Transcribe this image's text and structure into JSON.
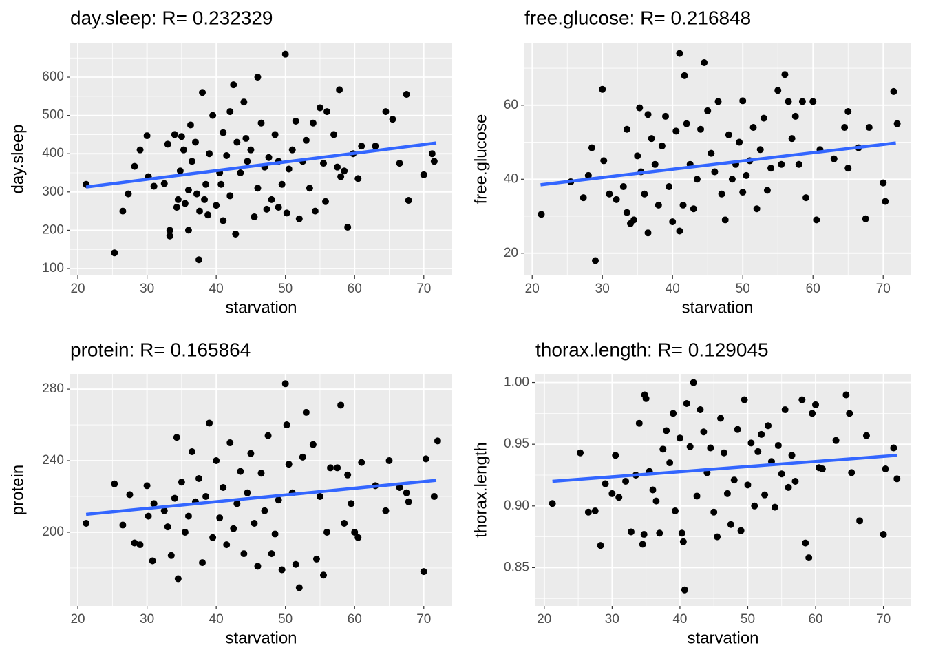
{
  "chart_data": [
    {
      "type": "scatter",
      "title": "day.sleep: R= 0.232329",
      "x_label": "starvation",
      "y_label": "day.sleep",
      "xlim": [
        18.9,
        74.1
      ],
      "xticks": [
        20,
        30,
        40,
        50,
        60,
        70
      ],
      "ylim": [
        82,
        690
      ],
      "yticks": [
        100,
        200,
        300,
        400,
        500,
        600
      ],
      "grid": true,
      "minor_grid": true,
      "color": "#000000",
      "x": [
        21.2,
        25.3,
        26.5,
        27.3,
        28.2,
        29,
        30,
        30.2,
        31,
        32.5,
        33,
        33.3,
        33.3,
        34,
        34.3,
        34.5,
        34.8,
        35,
        35.3,
        35.5,
        36,
        36,
        36.3,
        36.5,
        37,
        37.2,
        37.5,
        37.6,
        38,
        38.3,
        38.5,
        38.8,
        39,
        39.5,
        40,
        40.5,
        40.7,
        41,
        41,
        41.5,
        42,
        42,
        42.5,
        42.8,
        43,
        43.5,
        44,
        44.3,
        44.5,
        45,
        45.5,
        46,
        46,
        46.5,
        47,
        47.3,
        47.6,
        48,
        48.5,
        49,
        49.5,
        49,
        50,
        50.2,
        50.5,
        51,
        51.5,
        52,
        52.5,
        53,
        53.5,
        54,
        54.3,
        55,
        55.5,
        55.8,
        56,
        57,
        57.5,
        57.8,
        58,
        58.5,
        59,
        59.8,
        60.5,
        61,
        63,
        64.5,
        65.5,
        66.5,
        67.5,
        67.8,
        70,
        71.2,
        71.5
      ],
      "values": [
        320,
        141,
        250,
        295,
        367,
        410,
        447,
        340,
        315,
        322,
        425,
        200,
        185,
        450,
        260,
        280,
        355,
        445,
        410,
        270,
        200,
        305,
        475,
        380,
        430,
        295,
        123,
        250,
        560,
        280,
        320,
        240,
        400,
        500,
        265,
        350,
        320,
        455,
        225,
        395,
        510,
        290,
        580,
        190,
        430,
        350,
        535,
        440,
        380,
        410,
        235,
        600,
        310,
        480,
        365,
        255,
        390,
        280,
        450,
        380,
        320,
        260,
        660,
        245,
        360,
        410,
        485,
        230,
        380,
        435,
        310,
        480,
        250,
        520,
        375,
        275,
        510,
        450,
        365,
        567,
        340,
        355,
        208,
        400,
        335,
        420,
        420,
        510,
        490,
        375,
        555,
        278,
        345,
        400,
        380
      ],
      "fit": {
        "x": [
          21.2,
          71.8
        ],
        "values": [
          313,
          428
        ],
        "color": "#3366ff"
      }
    },
    {
      "type": "scatter",
      "title": "free.glucose: R= 0.216848",
      "x_label": "starvation",
      "y_label": "free.glucose",
      "xlim": [
        18.9,
        73.9
      ],
      "xticks": [
        20,
        30,
        40,
        50,
        60,
        70
      ],
      "ylim": [
        14.0,
        76.9
      ],
      "yticks": [
        20,
        40,
        60
      ],
      "grid": true,
      "minor_grid": true,
      "color": "#000000",
      "x": [
        21.3,
        25.5,
        27.3,
        28,
        28.5,
        29,
        30,
        30.2,
        31,
        32,
        33,
        33.5,
        33.5,
        34,
        34.5,
        35,
        35.3,
        35.5,
        36,
        36.5,
        36.5,
        37,
        37.5,
        38,
        38.5,
        39,
        39.5,
        40,
        40.5,
        41,
        41,
        41.5,
        41.7,
        42,
        42.5,
        43,
        43.5,
        44,
        44.5,
        45,
        45.5,
        46,
        46.5,
        47,
        47.5,
        48,
        48.5,
        49,
        49.5,
        50,
        50,
        50.5,
        51,
        51.5,
        52,
        52.5,
        53,
        53.5,
        54,
        55,
        55.5,
        56,
        56.5,
        57,
        57.5,
        58,
        58.5,
        59,
        60,
        60.5,
        61,
        63,
        64.5,
        65,
        65,
        66.5,
        67.5,
        68,
        70,
        70.3,
        71.5,
        72
      ],
      "values": [
        30.5,
        39.3,
        35,
        41,
        48.5,
        18,
        64.3,
        45,
        36,
        34.5,
        38,
        31,
        53.5,
        28,
        29,
        46.3,
        59.3,
        42,
        36,
        57.5,
        25.5,
        51,
        44,
        33,
        49,
        57,
        38,
        28.5,
        53,
        26,
        74,
        33,
        68,
        55,
        44,
        32,
        40,
        53.5,
        71.5,
        58.5,
        47,
        42,
        61,
        36,
        29,
        52,
        40,
        44,
        50,
        61.2,
        36.5,
        41,
        45,
        54,
        32,
        48,
        56.5,
        37,
        43,
        64,
        44,
        68.3,
        61,
        51,
        57,
        44,
        61,
        35,
        61,
        29,
        48,
        45.5,
        54,
        58.3,
        43,
        48.5,
        29.3,
        54,
        39,
        34,
        63.7,
        55
      ],
      "fit": {
        "x": [
          21.2,
          71.8
        ],
        "values": [
          38.5,
          49.8
        ],
        "color": "#3366ff"
      }
    },
    {
      "type": "scatter",
      "title": "protein: R= 0.165864",
      "x_label": "starvation",
      "y_label": "protein",
      "xlim": [
        18.9,
        74.1
      ],
      "xticks": [
        20,
        30,
        40,
        50,
        60,
        70
      ],
      "ylim": [
        158.8,
        288.5
      ],
      "yticks": [
        200,
        240,
        280
      ],
      "grid": true,
      "minor_grid": true,
      "color": "#000000",
      "x": [
        21.2,
        25.3,
        26.5,
        27.5,
        28.2,
        29,
        30,
        30.2,
        30.8,
        31,
        32.5,
        33,
        33.5,
        34,
        34.3,
        34.5,
        35,
        35.5,
        36,
        36.5,
        37,
        37.5,
        38,
        38.5,
        39,
        39.5,
        40,
        40.5,
        41,
        41.5,
        42,
        42.5,
        43,
        43.5,
        44,
        44.5,
        45,
        45.5,
        46,
        46.5,
        47,
        47.5,
        48,
        48.5,
        49,
        49.5,
        50,
        50.2,
        50.5,
        51,
        51.5,
        52,
        52.5,
        53,
        54,
        54.5,
        55,
        55.5,
        56,
        56.5,
        57.5,
        58,
        58.5,
        59,
        59.5,
        60,
        60.5,
        61,
        63,
        64.5,
        65,
        66.5,
        67.5,
        67.8,
        70,
        70.3,
        71.5,
        72
      ],
      "values": [
        205,
        227,
        204,
        221,
        194,
        193,
        226,
        209,
        184,
        216,
        212,
        203,
        187,
        219,
        253,
        174,
        228,
        200,
        209,
        245,
        217,
        230,
        183,
        220,
        261,
        197,
        240,
        208,
        225,
        193,
        250,
        202,
        216,
        234,
        188,
        222,
        244,
        205,
        181,
        233,
        212,
        254,
        188,
        199,
        218,
        179,
        283,
        260,
        238,
        222,
        182,
        169,
        242,
        267,
        249,
        185,
        220,
        176,
        200,
        236,
        236,
        271,
        205,
        232,
        216,
        200,
        197,
        239,
        226,
        212,
        240,
        225,
        222,
        217,
        178,
        241,
        220,
        251
      ],
      "fit": {
        "x": [
          21.2,
          71.8
        ],
        "values": [
          210,
          229
        ],
        "color": "#3366ff"
      }
    },
    {
      "type": "scatter",
      "title": "thorax.length: R= 0.129045",
      "x_label": "starvation",
      "y_label": "thorax.length",
      "xlim": [
        18.7,
        74.0
      ],
      "xticks": [
        20,
        30,
        40,
        50,
        60,
        70
      ],
      "ylim": [
        0.819,
        1.007
      ],
      "yticks": [
        {
          "value": 1.0,
          "label": "1.00"
        },
        0.95,
        {
          "value": 0.9,
          "label": "0.90"
        },
        0.85
      ],
      "grid": true,
      "minor_grid": true,
      "color": "#000000",
      "x": [
        21.2,
        25.3,
        26.5,
        27.5,
        28.3,
        29,
        30,
        30.5,
        31,
        32,
        32.8,
        33.5,
        34,
        34.5,
        34.7,
        34.8,
        35,
        35.5,
        36,
        36.5,
        37,
        37.5,
        38,
        38.5,
        39,
        39.3,
        40,
        40.3,
        40.5,
        40.7,
        41,
        41.5,
        42,
        42.5,
        43,
        43.5,
        44,
        44.5,
        45,
        45.5,
        46,
        46.5,
        47,
        47.5,
        48,
        48.5,
        49,
        49.5,
        50,
        50.5,
        51,
        51.5,
        52,
        52.5,
        53,
        53.5,
        54,
        54.5,
        55,
        55.5,
        56,
        56.5,
        57,
        58,
        58.5,
        59,
        59.5,
        60,
        60.5,
        61,
        63,
        64.5,
        65,
        65.3,
        66.5,
        67.5,
        70,
        70.3,
        71.5,
        72
      ],
      "values": [
        0.902,
        0.943,
        0.895,
        0.896,
        0.868,
        0.918,
        0.91,
        0.941,
        0.907,
        0.92,
        0.879,
        0.925,
        0.967,
        0.869,
        0.877,
        0.99,
        0.987,
        0.928,
        0.913,
        0.904,
        0.878,
        0.946,
        0.961,
        0.935,
        0.975,
        0.896,
        0.955,
        0.878,
        0.871,
        0.832,
        0.983,
        0.948,
        1.0,
        0.908,
        0.978,
        0.96,
        0.927,
        0.947,
        0.895,
        0.875,
        0.971,
        0.943,
        0.91,
        0.885,
        0.921,
        0.962,
        0.88,
        0.986,
        0.917,
        0.951,
        0.9,
        0.944,
        0.958,
        0.909,
        0.965,
        0.936,
        0.899,
        0.949,
        0.926,
        0.978,
        0.915,
        0.941,
        0.92,
        0.986,
        0.87,
        0.858,
        0.975,
        0.982,
        0.931,
        0.93,
        0.953,
        0.99,
        0.975,
        0.927,
        0.888,
        0.957,
        0.877,
        0.93,
        0.947,
        0.922
      ],
      "fit": {
        "x": [
          21.2,
          72
        ],
        "values": [
          0.92,
          0.941
        ],
        "color": "#3366ff"
      }
    }
  ]
}
